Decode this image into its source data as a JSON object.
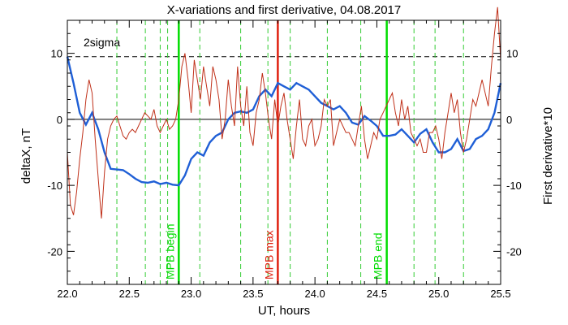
{
  "chart_data": {
    "type": "line",
    "title": "X-variations and first derivative, 04.08.2017",
    "xlabel": "UT, hours",
    "ylabel_left": "deltaX, nT",
    "ylabel_right": "First derivative*10",
    "xlim": [
      22.0,
      25.5
    ],
    "ylim": [
      -25,
      15
    ],
    "x_ticks": [
      "22.0",
      "22.5",
      "23.0",
      "23.5",
      "24.0",
      "24.5",
      "25.0",
      "25.5"
    ],
    "y_ticks_left": [
      "10",
      "0",
      "-10",
      "-20"
    ],
    "y_ticks_right": [
      "10",
      "0",
      "-10",
      "-20"
    ],
    "y_tick_values": [
      10,
      0,
      -10,
      -20
    ],
    "sigma_label": "2sigma",
    "sigma_level": 9.5,
    "zero_line": 0,
    "colors": {
      "deltaX": "#1f5fd6",
      "derivative": "#c0311a",
      "mpb_edge": "#00dd00",
      "mpb_max": "#e02010",
      "dashed_marker": "#33cc33",
      "left_label": "#1f5fd6",
      "right_label": "#e03010"
    },
    "vertical_markers": [
      {
        "x": 22.9,
        "label": "MPB begin",
        "kind": "edge"
      },
      {
        "x": 23.7,
        "label": "MPB max",
        "kind": "max"
      },
      {
        "x": 24.58,
        "label": "MPB end",
        "kind": "edge"
      }
    ],
    "dashed_lines_x": [
      22.4,
      22.63,
      22.75,
      22.81,
      23.07,
      23.4,
      23.62,
      23.8,
      24.1,
      24.37,
      24.8,
      24.97,
      25.2
    ],
    "series": [
      {
        "name": "deltaX",
        "color": "#1f5fd6",
        "x": [
          22.0,
          22.05,
          22.1,
          22.15,
          22.2,
          22.25,
          22.3,
          22.35,
          22.4,
          22.45,
          22.5,
          22.55,
          22.6,
          22.65,
          22.7,
          22.75,
          22.8,
          22.85,
          22.9,
          22.95,
          23.0,
          23.05,
          23.1,
          23.15,
          23.2,
          23.25,
          23.3,
          23.35,
          23.4,
          23.45,
          23.5,
          23.55,
          23.6,
          23.65,
          23.7,
          23.75,
          23.8,
          23.85,
          23.9,
          23.95,
          24.0,
          24.05,
          24.1,
          24.15,
          24.2,
          24.25,
          24.3,
          24.35,
          24.4,
          24.45,
          24.5,
          24.55,
          24.6,
          24.65,
          24.7,
          24.75,
          24.8,
          24.85,
          24.9,
          24.95,
          25.0,
          25.05,
          25.1,
          25.15,
          25.2,
          25.25,
          25.3,
          25.35,
          25.4,
          25.45,
          25.5
        ],
        "y": [
          9.5,
          5.5,
          1.0,
          -0.8,
          1.0,
          -1.5,
          -5.0,
          -7.5,
          -7.6,
          -7.7,
          -8.3,
          -9.0,
          -9.5,
          -9.6,
          -9.4,
          -9.8,
          -9.6,
          -9.9,
          -10.0,
          -8.5,
          -6.0,
          -5.0,
          -5.5,
          -3.5,
          -2.5,
          -2.0,
          0.0,
          1.0,
          1.2,
          1.0,
          1.5,
          3.5,
          4.5,
          3.5,
          5.5,
          5.0,
          4.5,
          5.5,
          5.0,
          4.5,
          3.5,
          2.5,
          2.0,
          1.5,
          2.0,
          1.0,
          -0.5,
          -0.8,
          0.5,
          -0.2,
          -1.0,
          -2.5,
          -2.5,
          -2.3,
          -1.5,
          -2.5,
          -3.5,
          -2.2,
          -1.5,
          -3.5,
          -5.0,
          -5.0,
          -4.5,
          -3.0,
          -4.8,
          -4.5,
          -3.0,
          -2.5,
          -1.5,
          1.0,
          5.5
        ]
      },
      {
        "name": "First derivative*10",
        "color": "#c0311a",
        "x": [
          22.0,
          22.025,
          22.05,
          22.075,
          22.1,
          22.125,
          22.15,
          22.175,
          22.2,
          22.225,
          22.25,
          22.275,
          22.3,
          22.325,
          22.35,
          22.375,
          22.4,
          22.425,
          22.45,
          22.475,
          22.5,
          22.525,
          22.55,
          22.575,
          22.6,
          22.625,
          22.65,
          22.675,
          22.7,
          22.725,
          22.75,
          22.775,
          22.8,
          22.825,
          22.85,
          22.875,
          22.9,
          22.925,
          22.95,
          22.975,
          23.0,
          23.025,
          23.05,
          23.075,
          23.1,
          23.125,
          23.15,
          23.175,
          23.2,
          23.225,
          23.25,
          23.275,
          23.3,
          23.325,
          23.35,
          23.375,
          23.4,
          23.425,
          23.45,
          23.475,
          23.5,
          23.525,
          23.55,
          23.575,
          23.6,
          23.625,
          23.65,
          23.675,
          23.7,
          23.725,
          23.75,
          23.775,
          23.8,
          23.825,
          23.85,
          23.875,
          23.9,
          23.925,
          23.95,
          23.975,
          24.0,
          24.025,
          24.05,
          24.075,
          24.1,
          24.125,
          24.15,
          24.175,
          24.2,
          24.225,
          24.25,
          24.275,
          24.3,
          24.325,
          24.35,
          24.375,
          24.4,
          24.425,
          24.45,
          24.475,
          24.5,
          24.525,
          24.55,
          24.575,
          24.6,
          24.625,
          24.65,
          24.675,
          24.7,
          24.725,
          24.75,
          24.775,
          24.8,
          24.825,
          24.85,
          24.875,
          24.9,
          24.925,
          24.95,
          24.975,
          25.0,
          25.025,
          25.05,
          25.075,
          25.1,
          25.125,
          25.15,
          25.175,
          25.2,
          25.225,
          25.25,
          25.275,
          25.3,
          25.325,
          25.35,
          25.375,
          25.4,
          25.425,
          25.45,
          25.475,
          25.5
        ],
        "y": [
          -5,
          -13,
          -14.5,
          -11,
          -6,
          -2,
          3,
          6,
          4,
          -3,
          -9,
          -15,
          -8,
          -3,
          -1,
          0,
          0.5,
          -1,
          -2.5,
          -3,
          -2,
          -1.5,
          -2,
          -1,
          0,
          1,
          0.5,
          0,
          1.5,
          -1,
          -2,
          -1,
          0,
          -1.5,
          -1,
          0,
          3,
          8,
          10,
          6,
          1,
          9,
          6,
          3,
          8,
          5,
          2,
          8,
          6,
          3,
          -3,
          0,
          6,
          2,
          -1,
          8,
          2,
          -1,
          5,
          -2,
          -4,
          1,
          3,
          7,
          4,
          0,
          -3,
          3,
          -1,
          2,
          4,
          0,
          -3,
          -6,
          -1,
          3,
          -3,
          -4,
          -1,
          0,
          -4,
          -3,
          -1,
          3,
          2,
          3,
          -4,
          -2,
          0,
          -1,
          -2,
          -2,
          -3,
          -4,
          -1,
          2,
          -3,
          -6,
          -4,
          -2,
          -3,
          0,
          1,
          2,
          3,
          4,
          1,
          -1,
          3,
          0,
          2,
          -2,
          -3,
          -4,
          -3,
          -5,
          -5,
          -2,
          -2,
          -1,
          -3,
          -6,
          -2,
          1,
          4,
          1,
          3,
          -2,
          -5,
          -3,
          0,
          3,
          2,
          4,
          6,
          4,
          2,
          8,
          13,
          17,
          9
        ]
      }
    ]
  }
}
